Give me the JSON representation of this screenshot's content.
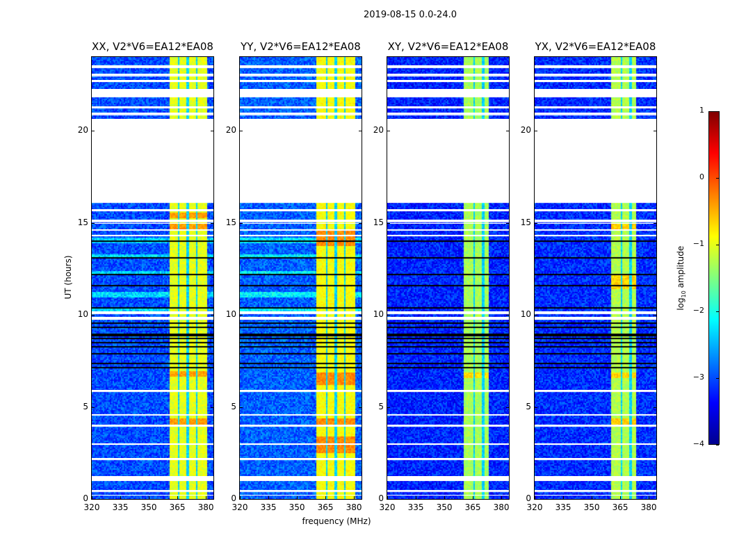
{
  "suptitle": "2019-08-15 0.0-24.0",
  "chart_data": {
    "type": "heatmap",
    "xlabel": "frequency (MHz)",
    "ylabel": "UT (hours)",
    "xlim": [
      320,
      384
    ],
    "ylim": [
      0,
      24
    ],
    "xticks": [
      "320",
      "335",
      "350",
      "365",
      "380"
    ],
    "yticks": [
      "0",
      "5",
      "10",
      "15",
      "20"
    ],
    "colorbar": {
      "label_main": "log",
      "label_sub": "10",
      "label_rest": " amplitude",
      "range": [
        -4,
        1
      ],
      "ticks": [
        "1",
        "0",
        "−1",
        "−2",
        "−3",
        "−4"
      ],
      "colormap": "jet"
    },
    "flagged_hours": [
      [
        23.45,
        23.55
      ],
      [
        23.0,
        23.08
      ],
      [
        22.65,
        22.75
      ],
      [
        21.85,
        22.25
      ],
      [
        21.25,
        21.32
      ],
      [
        20.9,
        20.97
      ],
      [
        16.15,
        20.65
      ],
      [
        15.65,
        15.72
      ],
      [
        15.08,
        15.16
      ],
      [
        14.95,
        15.0
      ],
      [
        14.6,
        14.66
      ],
      [
        14.3,
        14.35
      ],
      [
        10.1,
        10.2
      ],
      [
        9.75,
        9.9
      ],
      [
        5.85,
        5.92
      ],
      [
        4.55,
        4.62
      ],
      [
        3.98,
        4.05
      ],
      [
        2.95,
        3.02
      ],
      [
        2.15,
        2.22
      ],
      [
        1.0,
        1.25
      ],
      [
        0.45,
        0.5
      ],
      [
        0.18,
        0.22
      ]
    ],
    "dropout_hours": [
      [
        14.0,
        14.04
      ],
      [
        13.1,
        13.14
      ],
      [
        12.2,
        12.24
      ],
      [
        11.6,
        11.64
      ],
      [
        10.4,
        10.45
      ],
      [
        9.55,
        9.6
      ],
      [
        9.35,
        9.42
      ],
      [
        8.9,
        9.0
      ],
      [
        8.7,
        8.8
      ],
      [
        8.5,
        8.56
      ],
      [
        8.3,
        8.36
      ],
      [
        8.1,
        8.15
      ],
      [
        7.9,
        7.96
      ],
      [
        7.7,
        7.74
      ],
      [
        7.35,
        7.45
      ],
      [
        7.15,
        7.2
      ],
      [
        0.55,
        0.6
      ]
    ],
    "panels": [
      {
        "title": "XX, V2*V6=EA12*EA08",
        "background": -3.0,
        "band": [
          360.5,
          380
        ],
        "band_level": -1.0,
        "notches": [
          365.5,
          370,
          375
        ],
        "bright_rows": [
          [
            13.9,
            14.2
          ],
          [
            13.15,
            13.3
          ],
          [
            12.25,
            12.4
          ],
          [
            11.0,
            11.3
          ],
          [
            10.2,
            10.4
          ]
        ],
        "hot_hours": [
          [
            14.6,
            15.0
          ],
          [
            6.7,
            7.0
          ],
          [
            4.0,
            4.4
          ],
          [
            15.3,
            15.6
          ]
        ]
      },
      {
        "title": "YY, V2*V6=EA12*EA08",
        "background": -2.9,
        "band": [
          360,
          380
        ],
        "band_level": -0.9,
        "notches": [
          365.5,
          370,
          375
        ],
        "bright_rows": [
          [
            13.9,
            14.2
          ],
          [
            13.15,
            13.3
          ],
          [
            12.25,
            12.4
          ],
          [
            11.0,
            11.3
          ],
          [
            10.2,
            10.4
          ]
        ],
        "hot_hours": [
          [
            13.8,
            14.6
          ],
          [
            6.2,
            6.9
          ],
          [
            2.5,
            3.4
          ],
          [
            4.0,
            4.4
          ]
        ]
      },
      {
        "title": "XY, V2*V6=EA12*EA08",
        "background": -3.2,
        "band": [
          360,
          373
        ],
        "band_level": -1.3,
        "notches": [
          365.5,
          370,
          375
        ],
        "bright_rows": [],
        "hot_hours": [
          [
            6.6,
            6.9
          ]
        ]
      },
      {
        "title": "YX, V2*V6=EA12*EA08",
        "background": -3.15,
        "band": [
          360,
          373
        ],
        "band_level": -1.25,
        "notches": [
          365.5,
          370,
          375
        ],
        "bright_rows": [],
        "hot_hours": [
          [
            14.6,
            15.0
          ],
          [
            4.0,
            4.4
          ],
          [
            6.6,
            6.9
          ],
          [
            11.4,
            12.2
          ]
        ]
      }
    ]
  }
}
